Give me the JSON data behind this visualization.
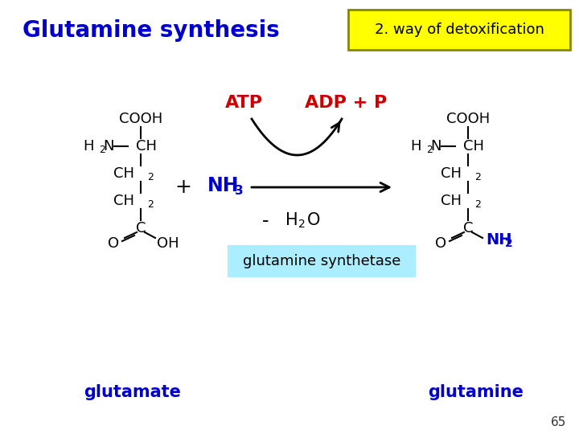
{
  "title": "Glutamine synthesis",
  "title_color": "#0000CC",
  "title_fontsize": 20,
  "box_label": "2. way of detoxification",
  "box_bg": "#FFFF00",
  "box_border": "#888800",
  "atp_label": "ATP",
  "adp_label": "ADP + P",
  "atp_color": "#CC0000",
  "nh3_color": "#0000CC",
  "enzyme_label": "glutamine synthetase",
  "enzyme_bg": "#AAEEFF",
  "glutamate_label": "glutamate",
  "glutamine_label": "glutamine",
  "bottom_label_color": "#0000CC",
  "page_number": "65",
  "bg_color": "#FFFFFF",
  "struct_fontsize": 13,
  "sub_fontsize": 9
}
